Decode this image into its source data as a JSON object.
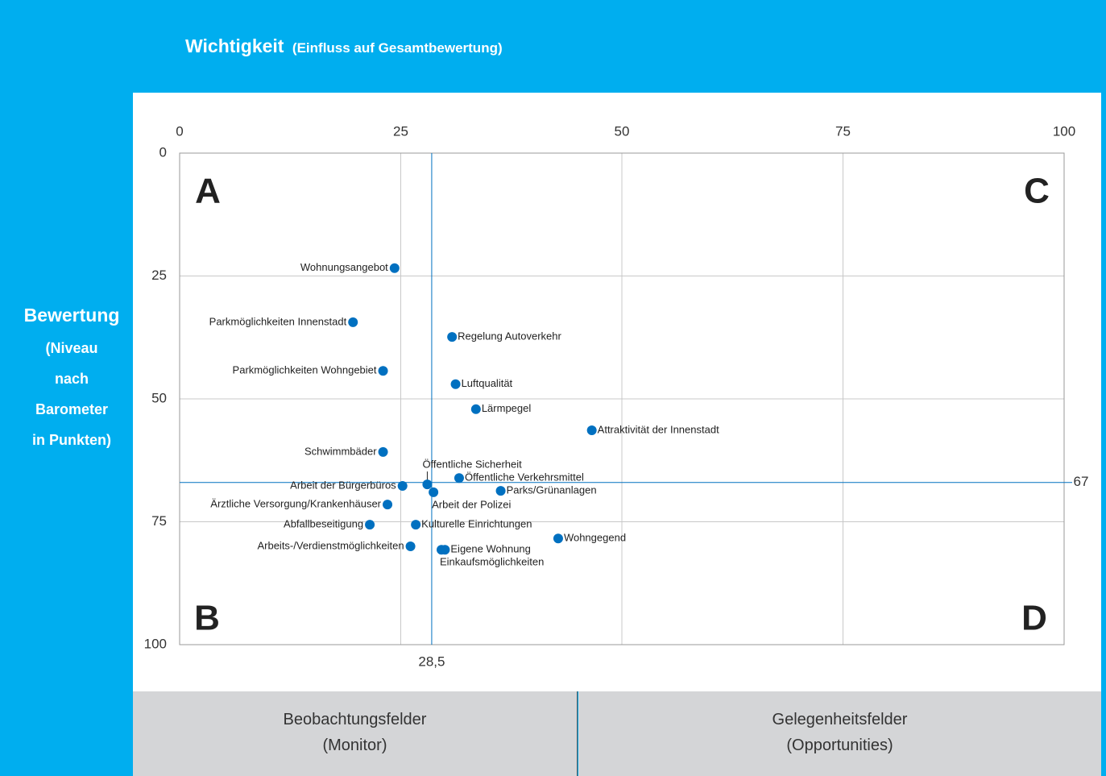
{
  "chart_data": {
    "type": "scatter",
    "title": "Wichtigkeit",
    "subtitle": "(Einfluss auf Gesamtbewertung)",
    "ylabel": "Bewertung",
    "ylabel_sub": "(Niveau nach Barometer in Punkten)",
    "xlim": [
      0,
      100
    ],
    "ylim": [
      0,
      100
    ],
    "y_inverted": true,
    "xticks": [
      0,
      25,
      50,
      75,
      100
    ],
    "yticks": [
      0,
      25,
      50,
      75,
      100
    ],
    "grid": true,
    "quadrants": [
      "A",
      "B",
      "C",
      "D"
    ],
    "reference_lines": [
      {
        "axis": "x",
        "value": 28.5,
        "label": "28,5"
      },
      {
        "axis": "y",
        "value": 67,
        "label": "67"
      }
    ],
    "point_labels": [
      "Wohnungsangebot",
      "Parkmöglichkeiten Innenstadt",
      "Regelung Autoverkehr",
      "Parkmöglichkeiten Wohngebiet",
      "Luftqualität",
      "Lärmpegel",
      "Attraktivität der Innenstadt",
      "Schwimmbäder",
      "Öffentliche Sicherheit",
      "Arbeit der Bürgerbüros",
      "Öffentliche Verkehrsmittel",
      "Parks/Grünanlagen",
      "Arbeit der Polizei",
      "Ärztliche Versorgung/Krankenhäuser",
      "Abfallbeseitigung",
      "Kulturelle Einrichtungen",
      "Wohngegend",
      "Arbeits-/Verdienstmöglichkeiten",
      "Eigene Wohnung",
      "Einkaufsmöglichkeiten"
    ],
    "x": [
      24.3,
      19.6,
      30.8,
      23.0,
      31.2,
      33.5,
      46.6,
      23.0,
      28.0,
      25.2,
      31.6,
      36.3,
      28.7,
      23.5,
      21.5,
      26.7,
      42.8,
      26.1,
      30.0,
      29.6
    ],
    "series": [
      {
        "color": "#0070c0",
        "values": [
          23.4,
          34.4,
          37.4,
          44.3,
          47.0,
          52.1,
          56.4,
          60.8,
          67.4,
          67.7,
          66.1,
          68.7,
          69.0,
          71.5,
          75.6,
          75.6,
          78.4,
          80.0,
          80.7,
          80.7
        ]
      }
    ]
  },
  "footer": [
    {
      "title": "Beobachtungsfelder",
      "subtitle": "(Monitor)"
    },
    {
      "title": "Gelegenheitsfelder",
      "subtitle": "(Opportunities)"
    }
  ]
}
